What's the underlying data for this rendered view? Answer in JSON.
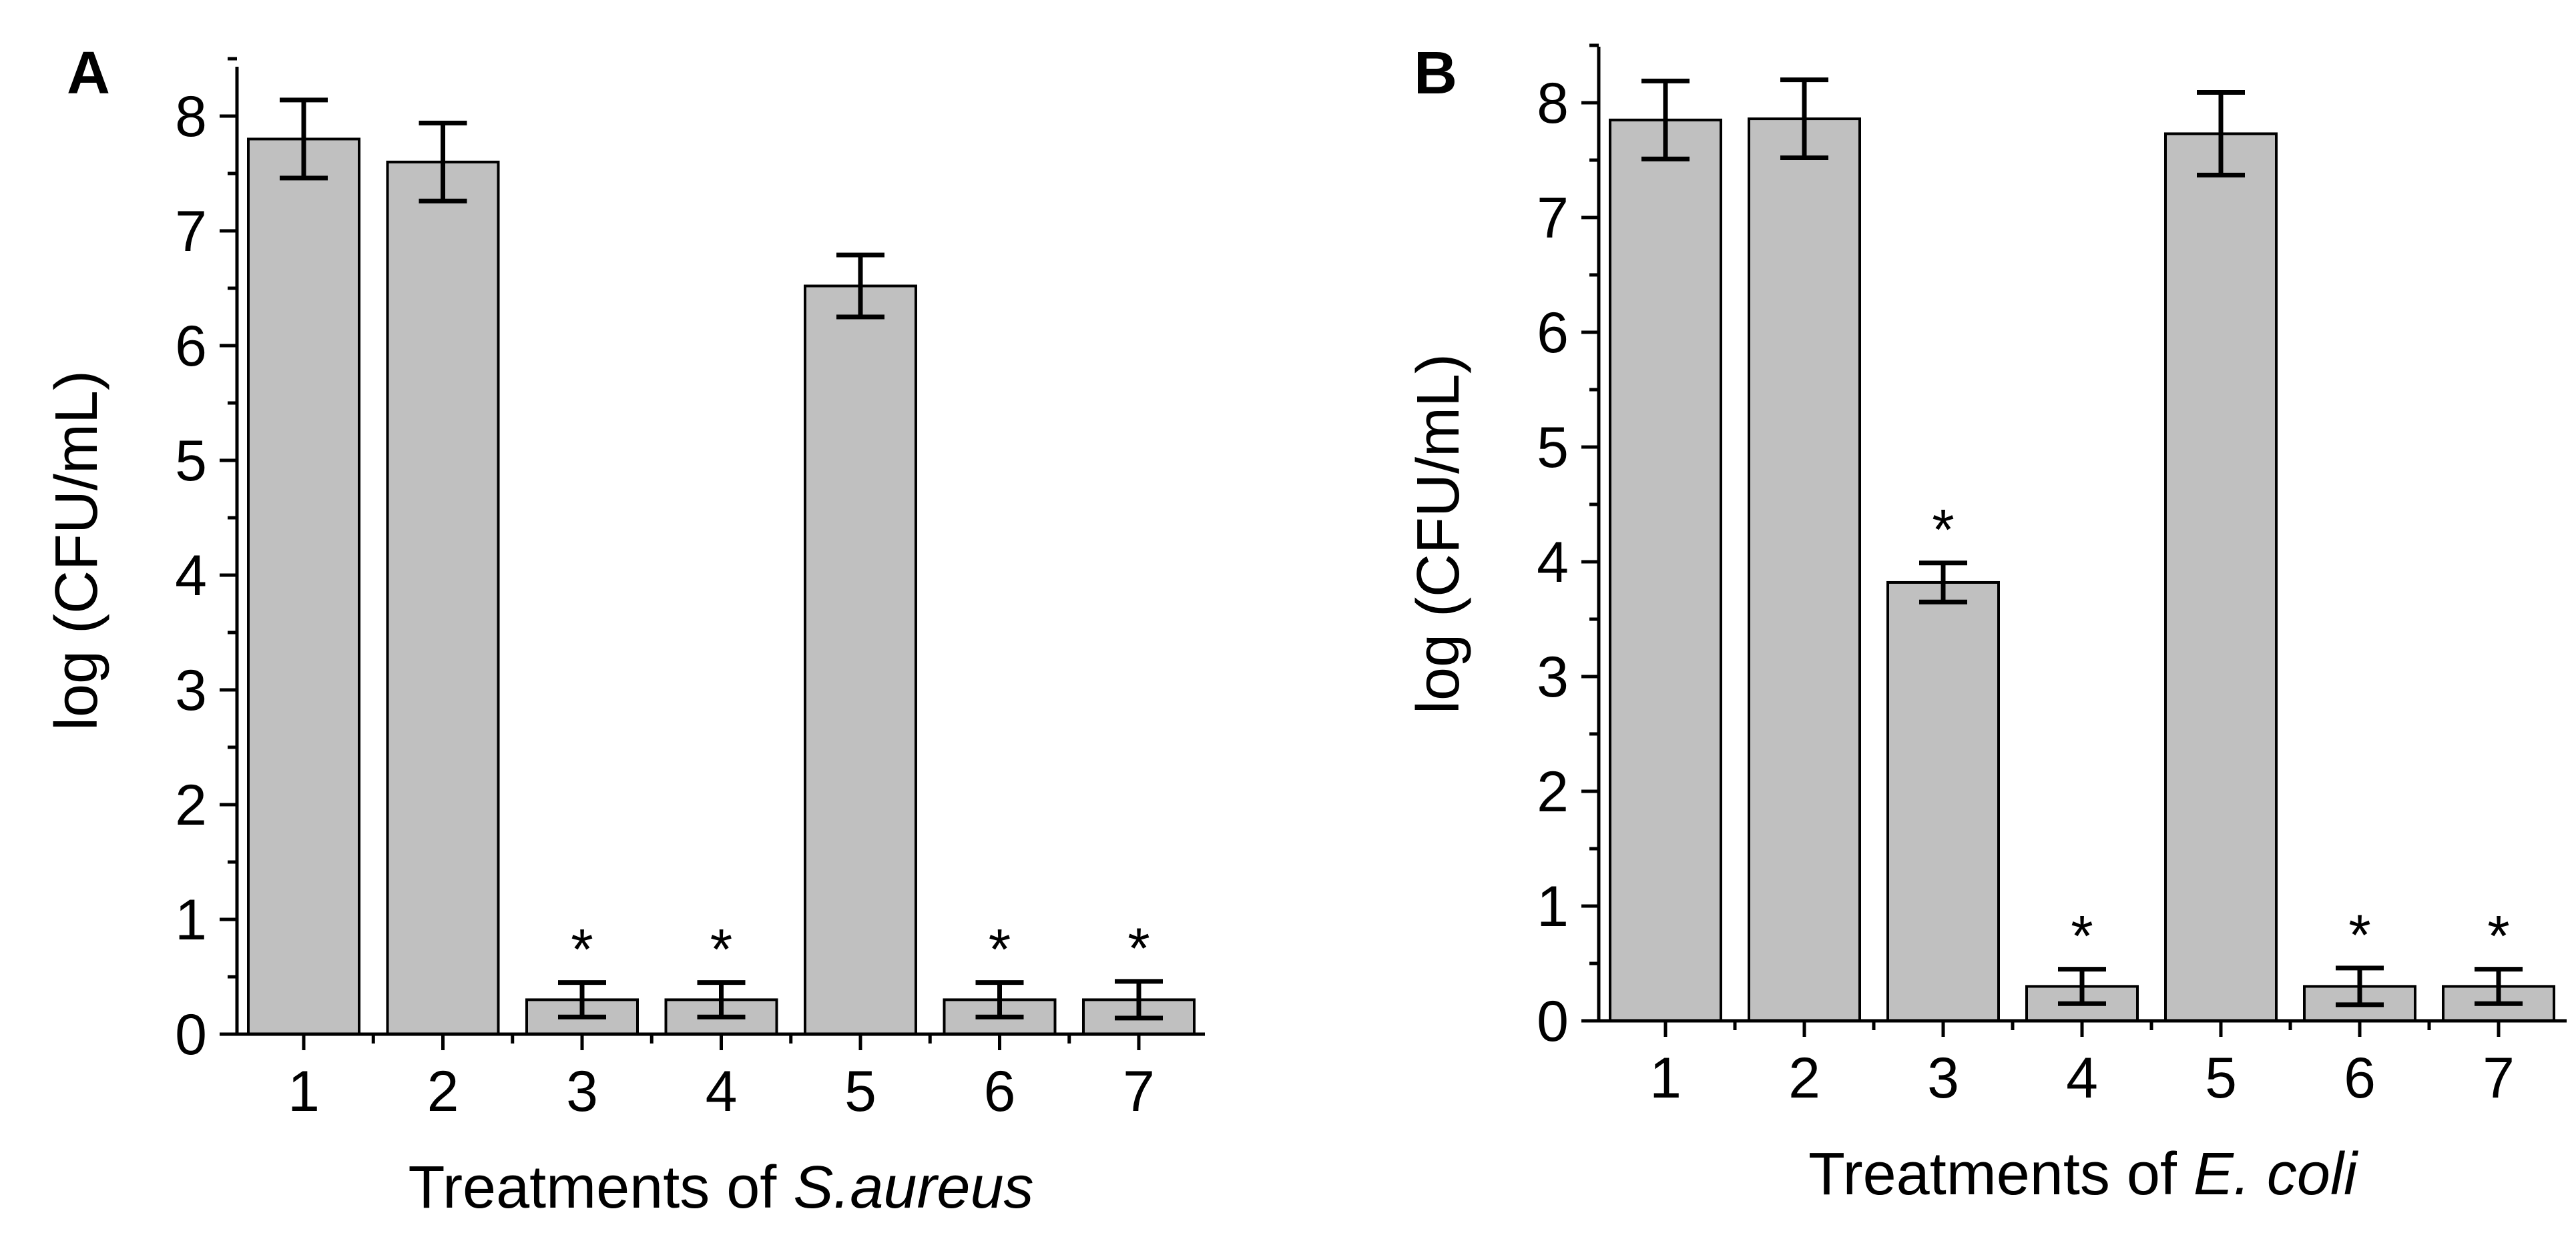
{
  "chart_data": [
    {
      "type": "bar",
      "panel_label": "A",
      "xlabel_prefix": "Treatments of ",
      "xlabel_italic": "S.aureus",
      "ylabel": "log (CFU/mL)",
      "categories": [
        "1",
        "2",
        "3",
        "4",
        "5",
        "6",
        "7"
      ],
      "values": [
        7.8,
        7.6,
        0.3,
        0.3,
        6.52,
        0.3,
        0.3
      ],
      "errors": [
        0.34,
        0.34,
        0.15,
        0.15,
        0.27,
        0.15,
        0.16
      ],
      "significance": [
        "",
        "",
        "*",
        "*",
        "",
        "*",
        "*"
      ],
      "ylim": [
        0,
        8.5
      ],
      "yticks": [
        "0",
        "1",
        "2",
        "3",
        "4",
        "5",
        "6",
        "7",
        "8"
      ],
      "grid": false,
      "bar_color": "#c0c0c0"
    },
    {
      "type": "bar",
      "panel_label": "B",
      "xlabel_prefix": "Treatments of ",
      "xlabel_italic": "E. coli",
      "ylabel": "log (CFU/mL)",
      "categories": [
        "1",
        "2",
        "3",
        "4",
        "5",
        "6",
        "7"
      ],
      "values": [
        7.85,
        7.86,
        3.82,
        0.3,
        7.73,
        0.3,
        0.3
      ],
      "errors": [
        0.34,
        0.34,
        0.17,
        0.15,
        0.36,
        0.16,
        0.15
      ],
      "significance": [
        "",
        "",
        "*",
        "*",
        "",
        "*",
        "*"
      ],
      "ylim": [
        0,
        8.5
      ],
      "yticks": [
        "0",
        "1",
        "2",
        "3",
        "4",
        "5",
        "6",
        "7",
        "8"
      ],
      "grid": false,
      "bar_color": "#c0c0c0"
    }
  ]
}
